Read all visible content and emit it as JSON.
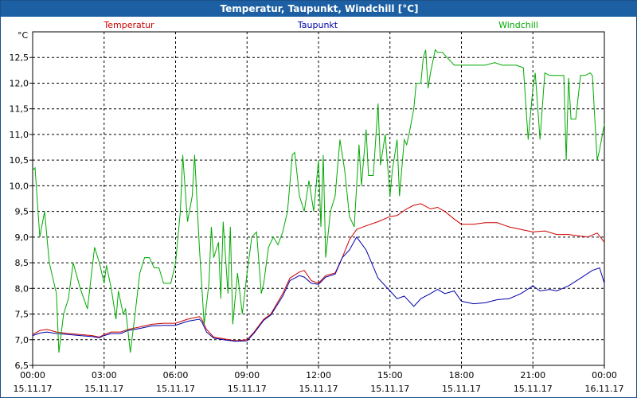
{
  "window": {
    "title": "Temperatur, Taupunkt, Windchill [°C]"
  },
  "chart_data": {
    "type": "line",
    "title": "Temperatur, Taupunkt, Windchill [°C]",
    "ylabel": "°C",
    "ylim": [
      6.5,
      13.0
    ],
    "yticks": [
      "6,5",
      "7,0",
      "7,5",
      "8,0",
      "8,5",
      "9,0",
      "9,5",
      "10,0",
      "10,5",
      "11,0",
      "11,5",
      "12,0",
      "12,5"
    ],
    "xlim": [
      0,
      24
    ],
    "xticks": [
      {
        "time": "00:00",
        "date": "15.11.17"
      },
      {
        "time": "03:00",
        "date": "15.11.17"
      },
      {
        "time": "06:00",
        "date": "15.11.17"
      },
      {
        "time": "09:00",
        "date": "15.11.17"
      },
      {
        "time": "12:00",
        "date": "15.11.17"
      },
      {
        "time": "15:00",
        "date": "15.11.17"
      },
      {
        "time": "18:00",
        "date": "15.11.17"
      },
      {
        "time": "21:00",
        "date": "15.11.17"
      },
      {
        "time": "00:00",
        "date": "16.11.17"
      }
    ],
    "grid": true,
    "legend_position": "top",
    "series": [
      {
        "name": "Temperatur",
        "color": "#cc0000",
        "points": [
          [
            0,
            7.1
          ],
          [
            0.3,
            7.18
          ],
          [
            0.6,
            7.2
          ],
          [
            1,
            7.15
          ],
          [
            1.5,
            7.12
          ],
          [
            2,
            7.1
          ],
          [
            2.5,
            7.08
          ],
          [
            2.8,
            7.05
          ],
          [
            3,
            7.1
          ],
          [
            3.3,
            7.15
          ],
          [
            3.7,
            7.15
          ],
          [
            4,
            7.2
          ],
          [
            4.5,
            7.25
          ],
          [
            5,
            7.3
          ],
          [
            5.5,
            7.32
          ],
          [
            6,
            7.32
          ],
          [
            6.5,
            7.4
          ],
          [
            7,
            7.45
          ],
          [
            7.1,
            7.4
          ],
          [
            7.3,
            7.2
          ],
          [
            7.6,
            7.05
          ],
          [
            8,
            7.02
          ],
          [
            8.5,
            6.98
          ],
          [
            9,
            7.0
          ],
          [
            9.3,
            7.15
          ],
          [
            9.7,
            7.4
          ],
          [
            10,
            7.5
          ],
          [
            10.5,
            7.9
          ],
          [
            10.8,
            8.2
          ],
          [
            11.2,
            8.32
          ],
          [
            11.4,
            8.35
          ],
          [
            11.7,
            8.15
          ],
          [
            12,
            8.1
          ],
          [
            12.3,
            8.25
          ],
          [
            12.7,
            8.3
          ],
          [
            13,
            8.6
          ],
          [
            13.3,
            8.95
          ],
          [
            13.6,
            9.15
          ],
          [
            14,
            9.22
          ],
          [
            14.5,
            9.3
          ],
          [
            15,
            9.4
          ],
          [
            15.3,
            9.42
          ],
          [
            15.7,
            9.55
          ],
          [
            16,
            9.62
          ],
          [
            16.3,
            9.65
          ],
          [
            16.7,
            9.55
          ],
          [
            17,
            9.58
          ],
          [
            17.3,
            9.5
          ],
          [
            17.7,
            9.35
          ],
          [
            18,
            9.25
          ],
          [
            18.5,
            9.25
          ],
          [
            19,
            9.28
          ],
          [
            19.5,
            9.28
          ],
          [
            20,
            9.2
          ],
          [
            20.5,
            9.15
          ],
          [
            21,
            9.1
          ],
          [
            21.5,
            9.12
          ],
          [
            22,
            9.05
          ],
          [
            22.5,
            9.05
          ],
          [
            23,
            9.02
          ],
          [
            23.3,
            9.0
          ],
          [
            23.7,
            9.08
          ],
          [
            24,
            8.9
          ]
        ]
      },
      {
        "name": "Taupunkt",
        "color": "#0000aa",
        "points": [
          [
            0,
            7.08
          ],
          [
            0.3,
            7.13
          ],
          [
            0.6,
            7.15
          ],
          [
            1,
            7.12
          ],
          [
            1.5,
            7.1
          ],
          [
            2,
            7.08
          ],
          [
            2.5,
            7.06
          ],
          [
            2.8,
            7.04
          ],
          [
            3,
            7.08
          ],
          [
            3.3,
            7.12
          ],
          [
            3.7,
            7.12
          ],
          [
            4,
            7.18
          ],
          [
            4.5,
            7.22
          ],
          [
            5,
            7.27
          ],
          [
            5.5,
            7.28
          ],
          [
            6,
            7.28
          ],
          [
            6.5,
            7.36
          ],
          [
            7,
            7.4
          ],
          [
            7.1,
            7.35
          ],
          [
            7.3,
            7.15
          ],
          [
            7.6,
            7.03
          ],
          [
            8,
            7.0
          ],
          [
            8.5,
            6.97
          ],
          [
            9,
            6.98
          ],
          [
            9.3,
            7.13
          ],
          [
            9.7,
            7.38
          ],
          [
            10,
            7.48
          ],
          [
            10.5,
            7.85
          ],
          [
            10.8,
            8.15
          ],
          [
            11.2,
            8.25
          ],
          [
            11.4,
            8.22
          ],
          [
            11.7,
            8.1
          ],
          [
            12,
            8.08
          ],
          [
            12.3,
            8.22
          ],
          [
            12.7,
            8.28
          ],
          [
            13,
            8.6
          ],
          [
            13.3,
            8.75
          ],
          [
            13.6,
            9.0
          ],
          [
            14,
            8.75
          ],
          [
            14.5,
            8.2
          ],
          [
            15,
            7.95
          ],
          [
            15.3,
            7.8
          ],
          [
            15.6,
            7.85
          ],
          [
            16,
            7.65
          ],
          [
            16.3,
            7.8
          ],
          [
            16.7,
            7.9
          ],
          [
            17,
            7.98
          ],
          [
            17.3,
            7.9
          ],
          [
            17.7,
            7.95
          ],
          [
            18,
            7.75
          ],
          [
            18.5,
            7.7
          ],
          [
            19,
            7.72
          ],
          [
            19.5,
            7.78
          ],
          [
            20,
            7.8
          ],
          [
            20.5,
            7.9
          ],
          [
            21,
            8.05
          ],
          [
            21.3,
            7.95
          ],
          [
            21.7,
            7.98
          ],
          [
            22,
            7.95
          ],
          [
            22.5,
            8.05
          ],
          [
            23,
            8.2
          ],
          [
            23.5,
            8.35
          ],
          [
            23.8,
            8.4
          ],
          [
            24,
            8.1
          ]
        ]
      },
      {
        "name": "Windchill",
        "color": "#00aa00",
        "points": [
          [
            0,
            10.3
          ],
          [
            0.1,
            10.35
          ],
          [
            0.3,
            9.0
          ],
          [
            0.5,
            9.5
          ],
          [
            0.7,
            8.5
          ],
          [
            1,
            7.9
          ],
          [
            1.1,
            6.75
          ],
          [
            1.3,
            7.5
          ],
          [
            1.5,
            7.8
          ],
          [
            1.7,
            8.5
          ],
          [
            2,
            8.0
          ],
          [
            2.3,
            7.6
          ],
          [
            2.6,
            8.8
          ],
          [
            2.8,
            8.5
          ],
          [
            3,
            8.1
          ],
          [
            3.1,
            8.45
          ],
          [
            3.3,
            8.0
          ],
          [
            3.5,
            7.4
          ],
          [
            3.6,
            7.95
          ],
          [
            3.8,
            7.5
          ],
          [
            3.9,
            7.6
          ],
          [
            4.1,
            6.75
          ],
          [
            4.3,
            7.5
          ],
          [
            4.5,
            8.3
          ],
          [
            4.7,
            8.6
          ],
          [
            4.9,
            8.6
          ],
          [
            5.1,
            8.4
          ],
          [
            5.3,
            8.4
          ],
          [
            5.5,
            8.1
          ],
          [
            5.8,
            8.1
          ],
          [
            6,
            8.5
          ],
          [
            6.2,
            9.5
          ],
          [
            6.3,
            10.6
          ],
          [
            6.5,
            9.3
          ],
          [
            6.7,
            9.8
          ],
          [
            6.8,
            10.6
          ],
          [
            7,
            8.8
          ],
          [
            7.2,
            7.3
          ],
          [
            7.4,
            8.1
          ],
          [
            7.5,
            9.2
          ],
          [
            7.6,
            8.6
          ],
          [
            7.8,
            8.9
          ],
          [
            7.9,
            7.8
          ],
          [
            8,
            9.3
          ],
          [
            8.2,
            7.9
          ],
          [
            8.3,
            9.2
          ],
          [
            8.4,
            7.3
          ],
          [
            8.6,
            8.3
          ],
          [
            8.8,
            7.5
          ],
          [
            9,
            8.3
          ],
          [
            9.2,
            9.0
          ],
          [
            9.4,
            9.1
          ],
          [
            9.6,
            7.9
          ],
          [
            9.7,
            8.1
          ],
          [
            9.9,
            8.8
          ],
          [
            10.1,
            9.0
          ],
          [
            10.3,
            8.85
          ],
          [
            10.5,
            9.1
          ],
          [
            10.7,
            9.5
          ],
          [
            10.9,
            10.6
          ],
          [
            11,
            10.65
          ],
          [
            11.2,
            9.8
          ],
          [
            11.4,
            9.5
          ],
          [
            11.6,
            10.1
          ],
          [
            11.8,
            9.5
          ],
          [
            12,
            10.5
          ],
          [
            12.1,
            9.2
          ],
          [
            12.2,
            10.6
          ],
          [
            12.3,
            8.6
          ],
          [
            12.5,
            9.5
          ],
          [
            12.7,
            9.8
          ],
          [
            12.9,
            10.9
          ],
          [
            13.1,
            10.3
          ],
          [
            13.3,
            9.4
          ],
          [
            13.5,
            9.2
          ],
          [
            13.7,
            10.8
          ],
          [
            13.8,
            10.0
          ],
          [
            14,
            11.1
          ],
          [
            14.1,
            10.2
          ],
          [
            14.3,
            10.2
          ],
          [
            14.5,
            11.6
          ],
          [
            14.6,
            10.4
          ],
          [
            14.8,
            11.0
          ],
          [
            15,
            9.8
          ],
          [
            15.1,
            10.3
          ],
          [
            15.3,
            10.9
          ],
          [
            15.4,
            9.8
          ],
          [
            15.6,
            10.9
          ],
          [
            15.7,
            10.8
          ],
          [
            15.8,
            11.0
          ],
          [
            16,
            11.5
          ],
          [
            16.1,
            12.0
          ],
          [
            16.3,
            12.0
          ],
          [
            16.4,
            12.5
          ],
          [
            16.5,
            12.65
          ],
          [
            16.6,
            11.9
          ],
          [
            16.7,
            12.2
          ],
          [
            16.9,
            12.65
          ],
          [
            17,
            12.6
          ],
          [
            17.2,
            12.6
          ],
          [
            17.4,
            12.5
          ],
          [
            17.7,
            12.35
          ],
          [
            18,
            12.35
          ],
          [
            18.5,
            12.35
          ],
          [
            19,
            12.35
          ],
          [
            19.4,
            12.4
          ],
          [
            19.7,
            12.35
          ],
          [
            20,
            12.35
          ],
          [
            20.3,
            12.35
          ],
          [
            20.6,
            12.3
          ],
          [
            20.8,
            10.9
          ],
          [
            21,
            11.9
          ],
          [
            21.1,
            12.2
          ],
          [
            21.3,
            10.9
          ],
          [
            21.5,
            12.2
          ],
          [
            21.7,
            12.15
          ],
          [
            22,
            12.15
          ],
          [
            22.3,
            12.15
          ],
          [
            22.4,
            10.5
          ],
          [
            22.5,
            12.1
          ],
          [
            22.6,
            11.3
          ],
          [
            22.8,
            11.3
          ],
          [
            23,
            12.15
          ],
          [
            23.2,
            12.15
          ],
          [
            23.4,
            12.2
          ],
          [
            23.5,
            12.15
          ],
          [
            23.6,
            11.3
          ],
          [
            23.7,
            10.5
          ],
          [
            23.8,
            10.7
          ],
          [
            24,
            11.2
          ]
        ]
      }
    ]
  }
}
